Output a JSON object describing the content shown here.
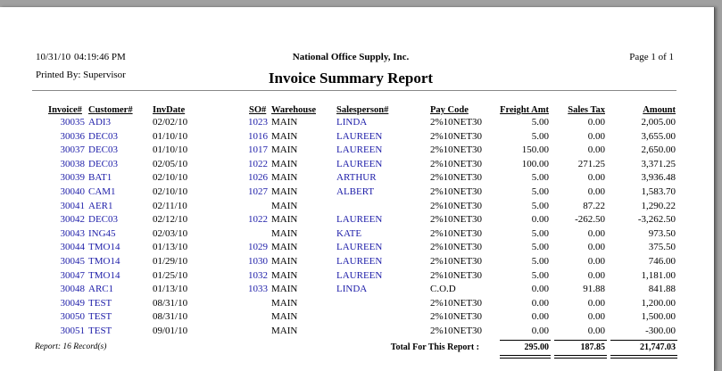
{
  "header": {
    "date": "10/31/10",
    "time": "04:19:46 PM",
    "company": "National Office Supply, Inc.",
    "page": "Page 1 of 1",
    "printed_by": "Printed By: Supervisor",
    "title": "Invoice Summary Report"
  },
  "table": {
    "columns": [
      "Invoice#",
      "Customer#",
      "InvDate",
      "SO#",
      "Warehouse",
      "Salesperson#",
      "Pay Code",
      "Freight Amt",
      "Sales Tax",
      "Amount"
    ],
    "rows": [
      [
        "30035",
        "ADI3",
        "02/02/10",
        "1023",
        "MAIN",
        "LINDA",
        "2%10NET30",
        "5.00",
        "0.00",
        "2,005.00"
      ],
      [
        "30036",
        "DEC03",
        "01/10/10",
        "1016",
        "MAIN",
        "LAUREEN",
        "2%10NET30",
        "5.00",
        "0.00",
        "3,655.00"
      ],
      [
        "30037",
        "DEC03",
        "01/10/10",
        "1017",
        "MAIN",
        "LAUREEN",
        "2%10NET30",
        "150.00",
        "0.00",
        "2,650.00"
      ],
      [
        "30038",
        "DEC03",
        "02/05/10",
        "1022",
        "MAIN",
        "LAUREEN",
        "2%10NET30",
        "100.00",
        "271.25",
        "3,371.25"
      ],
      [
        "30039",
        "BAT1",
        "02/10/10",
        "1026",
        "MAIN",
        "ARTHUR",
        "2%10NET30",
        "5.00",
        "0.00",
        "3,936.48"
      ],
      [
        "30040",
        "CAM1",
        "02/10/10",
        "1027",
        "MAIN",
        "ALBERT",
        "2%10NET30",
        "5.00",
        "0.00",
        "1,583.70"
      ],
      [
        "30041",
        "AER1",
        "02/11/10",
        null,
        "MAIN",
        null,
        "2%10NET30",
        "5.00",
        "87.22",
        "1,290.22"
      ],
      [
        "30042",
        "DEC03",
        "02/12/10",
        "1022",
        "MAIN",
        "LAUREEN",
        "2%10NET30",
        "0.00",
        "-262.50",
        "-3,262.50"
      ],
      [
        "30043",
        "ING45",
        "02/03/10",
        null,
        "MAIN",
        "KATE",
        "2%10NET30",
        "5.00",
        "0.00",
        "973.50"
      ],
      [
        "30044",
        "TMO14",
        "01/13/10",
        "1029",
        "MAIN",
        "LAUREEN",
        "2%10NET30",
        "5.00",
        "0.00",
        "375.50"
      ],
      [
        "30045",
        "TMO14",
        "01/29/10",
        "1030",
        "MAIN",
        "LAUREEN",
        "2%10NET30",
        "5.00",
        "0.00",
        "746.00"
      ],
      [
        "30047",
        "TMO14",
        "01/25/10",
        "1032",
        "MAIN",
        "LAUREEN",
        "2%10NET30",
        "5.00",
        "0.00",
        "1,181.00"
      ],
      [
        "30048",
        "ARC1",
        "01/13/10",
        "1033",
        "MAIN",
        "LINDA",
        "C.O.D",
        "0.00",
        "91.88",
        "841.88"
      ],
      [
        "30049",
        "TEST",
        "08/31/10",
        null,
        "MAIN",
        null,
        "2%10NET30",
        "0.00",
        "0.00",
        "1,200.00"
      ],
      [
        "30050",
        "TEST",
        "08/31/10",
        null,
        "MAIN",
        null,
        "2%10NET30",
        "0.00",
        "0.00",
        "1,500.00"
      ],
      [
        "30051",
        "TEST",
        "09/01/10",
        null,
        "MAIN",
        null,
        "2%10NET30",
        "0.00",
        "0.00",
        "-300.00"
      ]
    ]
  },
  "footer": {
    "records": "Report: 16 Record(s)",
    "total_label": "Total For This Report :",
    "freight_total": "295.00",
    "tax_total": "187.85",
    "amount_total": "21,747.03"
  }
}
